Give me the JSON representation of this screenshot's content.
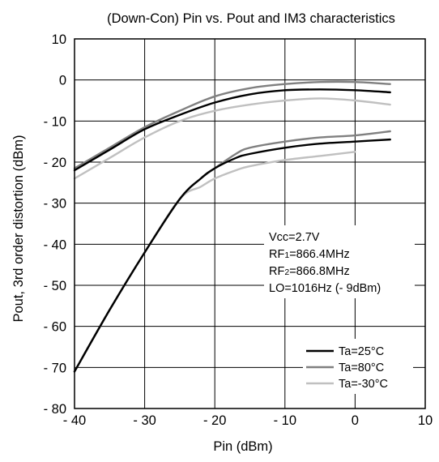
{
  "chart_data": {
    "type": "line",
    "title": "(Down-Con) Pin vs. Pout and IM3 characteristics",
    "xlabel": "Pin  (dBm)",
    "ylabel": "Pout, 3rd order distortion  (dBm)",
    "xlim": [
      -40,
      10
    ],
    "ylim": [
      -80,
      10
    ],
    "x_ticks": [
      -40,
      -30,
      -20,
      -10,
      0,
      10
    ],
    "x_tick_labels": [
      "- 40",
      "- 30",
      "- 20",
      "- 10",
      "0",
      "10"
    ],
    "y_ticks": [
      10,
      0,
      -10,
      -20,
      -30,
      -40,
      -50,
      -60,
      -70,
      -80
    ],
    "y_tick_labels": [
      "10",
      "0",
      "- 10",
      "- 20",
      "- 30",
      "- 40",
      "- 50",
      "- 60",
      "- 70",
      "- 80"
    ],
    "grid": true,
    "legend_position": "bottom-right",
    "annotation_lines": [
      "Vcc=2.7V",
      "RF",
      "1",
      "=866.4MHz",
      "RF",
      "2",
      "=866.8MHz",
      "LO=1016Hz (- 9dBm)"
    ],
    "series": [
      {
        "name": "Ta=25°C",
        "color": "#000000",
        "curve": "Pout",
        "x": [
          -40,
          -35,
          -30,
          -25,
          -20,
          -15,
          -10,
          -5,
          0,
          5
        ],
        "y": [
          -22,
          -17,
          -12,
          -8.5,
          -5.5,
          -3.5,
          -2.5,
          -2.3,
          -2.5,
          -3
        ]
      },
      {
        "name": "Ta=25°C",
        "color": "#000000",
        "curve": "IM3",
        "x": [
          -40,
          -35,
          -30,
          -25,
          -22,
          -20,
          -17,
          -15,
          -10,
          -5,
          0,
          5
        ],
        "y": [
          -71,
          -56,
          -42,
          -29,
          -24,
          -21.5,
          -19,
          -18,
          -16.5,
          -15.5,
          -15,
          -14.5
        ]
      },
      {
        "name": "Ta=80°C",
        "color": "#808080",
        "curve": "Pout",
        "x": [
          -40,
          -35,
          -30,
          -25,
          -20,
          -15,
          -10,
          -5,
          0,
          5
        ],
        "y": [
          -21.5,
          -16.5,
          -11.5,
          -7.5,
          -4,
          -2,
          -1,
          -0.5,
          -0.5,
          -1
        ]
      },
      {
        "name": "Ta=80°C",
        "color": "#808080",
        "curve": "IM3",
        "x": [
          -40,
          -35,
          -30,
          -25,
          -22,
          -20,
          -17,
          -15,
          -10,
          -5,
          0,
          5
        ],
        "y": [
          -71,
          -56,
          -42,
          -29,
          -24,
          -21.5,
          -18,
          -16.5,
          -15,
          -14,
          -13.5,
          -12.5
        ]
      },
      {
        "name": "Ta=-30°C",
        "color": "#c0c0c0",
        "curve": "Pout",
        "x": [
          -40,
          -35,
          -30,
          -25,
          -20,
          -15,
          -10,
          -5,
          0,
          5
        ],
        "y": [
          -24,
          -19,
          -14,
          -10,
          -7.5,
          -6,
          -5,
          -4.5,
          -5,
          -6
        ]
      },
      {
        "name": "Ta=-30°C",
        "color": "#c0c0c0",
        "curve": "IM3",
        "x": [
          -40,
          -35,
          -30,
          -25,
          -22,
          -20,
          -17,
          -15,
          -10,
          -5,
          0
        ],
        "y": [
          -71,
          -56,
          -42,
          -29,
          -26,
          -24,
          -22,
          -21,
          -19.5,
          -18.5,
          -17.5
        ]
      }
    ]
  }
}
